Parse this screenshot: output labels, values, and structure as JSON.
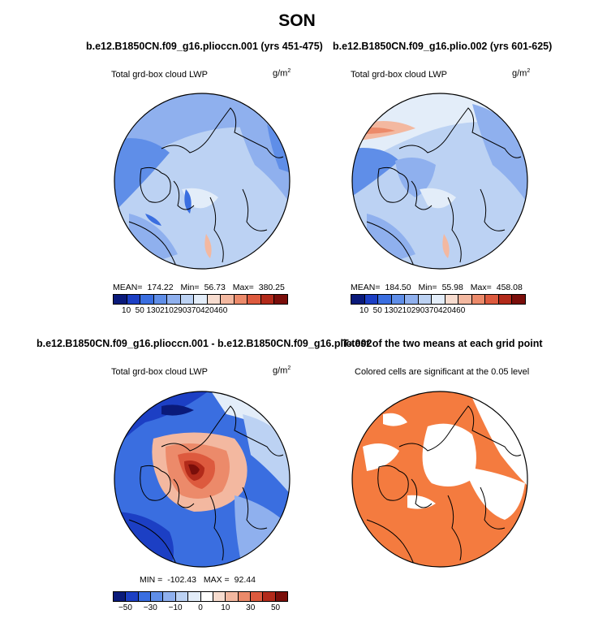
{
  "figure": {
    "season": "SON",
    "variable": "Total grd-box cloud LWP",
    "units_base": "g/m",
    "units_exp": "2"
  },
  "panels": {
    "p1": {
      "title": "b.e12.B1850CN.f09_g16.plioccn.001 (yrs 451-475)",
      "mean_label": "MEAN=",
      "mean": "174.22",
      "min_label": "Min=",
      "min": "56.73",
      "max_label": "Max=",
      "max": "380.25"
    },
    "p2": {
      "title": "b.e12.B1850CN.f09_g16.plio.002 (yrs 601-625)",
      "mean_label": "MEAN=",
      "mean": "184.50",
      "min_label": "Min=",
      "min": "55.98",
      "max_label": "Max=",
      "max": "458.08"
    },
    "p3": {
      "title": "b.e12.B1850CN.f09_g16.plioccn.001 - b.e12.B1850CN.f09_g16.plio.002",
      "min_label": "MIN =",
      "min": "-102.43",
      "max_label": "MAX =",
      "max": "92.44"
    },
    "p4": {
      "title": "T-test of the two means at each grid point",
      "subtitle": "Colored cells are significant at the 0.05 level"
    }
  },
  "colors": {
    "abs_scale": [
      "#0a1a7a",
      "#1c3fc4",
      "#3a6ee0",
      "#5f8ee8",
      "#8fb0ee",
      "#bcd2f3",
      "#e3edf9",
      "#f7dccf",
      "#f3b8a0",
      "#ec8a6a",
      "#dd5a3e",
      "#b22a1a",
      "#7a0e0a"
    ],
    "diff_scale": [
      "#0a1a7a",
      "#1c3fc4",
      "#3a6ee0",
      "#5f8ee8",
      "#8fb0ee",
      "#bcd2f3",
      "#e3edf9",
      "#ffffff",
      "#f7dccf",
      "#f3b8a0",
      "#ec8a6a",
      "#dd5a3e",
      "#b22a1a",
      "#7a0e0a"
    ],
    "significant": "#f47b3f",
    "coast": "#000000"
  },
  "chart_data": [
    {
      "type": "heatmap",
      "projection": "north-polar-stereographic",
      "title": "b.e12.B1850CN.f09_g16.plioccn.001 (yrs 451-475)",
      "variable": "Total grd-box cloud LWP",
      "units": "g/m2",
      "stats": {
        "mean": 174.22,
        "min": 56.73,
        "max": 380.25
      },
      "colorbar": {
        "levels": [
          10,
          50,
          130,
          210,
          290,
          370,
          420,
          460
        ],
        "tick_labels": [
          "10",
          "50",
          "130",
          "210",
          "290",
          "370",
          "420",
          "460"
        ]
      }
    },
    {
      "type": "heatmap",
      "projection": "north-polar-stereographic",
      "title": "b.e12.B1850CN.f09_g16.plio.002 (yrs 601-625)",
      "variable": "Total grd-box cloud LWP",
      "units": "g/m2",
      "stats": {
        "mean": 184.5,
        "min": 55.98,
        "max": 458.08
      },
      "colorbar": {
        "levels": [
          10,
          50,
          130,
          210,
          290,
          370,
          420,
          460
        ],
        "tick_labels": [
          "10",
          "50",
          "130",
          "210",
          "290",
          "370",
          "420",
          "460"
        ]
      }
    },
    {
      "type": "heatmap",
      "projection": "north-polar-stereographic",
      "title": "b.e12.B1850CN.f09_g16.plioccn.001 - b.e12.B1850CN.f09_g16.plio.002",
      "variable": "Total grd-box cloud LWP",
      "units": "g/m2",
      "stats": {
        "min": -102.43,
        "max": 92.44
      },
      "colorbar": {
        "levels": [
          -50,
          -30,
          -10,
          0,
          10,
          30,
          50
        ],
        "tick_labels": [
          "−50",
          "−30",
          "−10",
          "0",
          "10",
          "30",
          "50"
        ]
      }
    },
    {
      "type": "heatmap",
      "projection": "north-polar-stereographic",
      "title": "T-test of the two means at each grid point",
      "subtitle": "Colored cells are significant at the 0.05 level",
      "significance_level": 0.05
    }
  ]
}
